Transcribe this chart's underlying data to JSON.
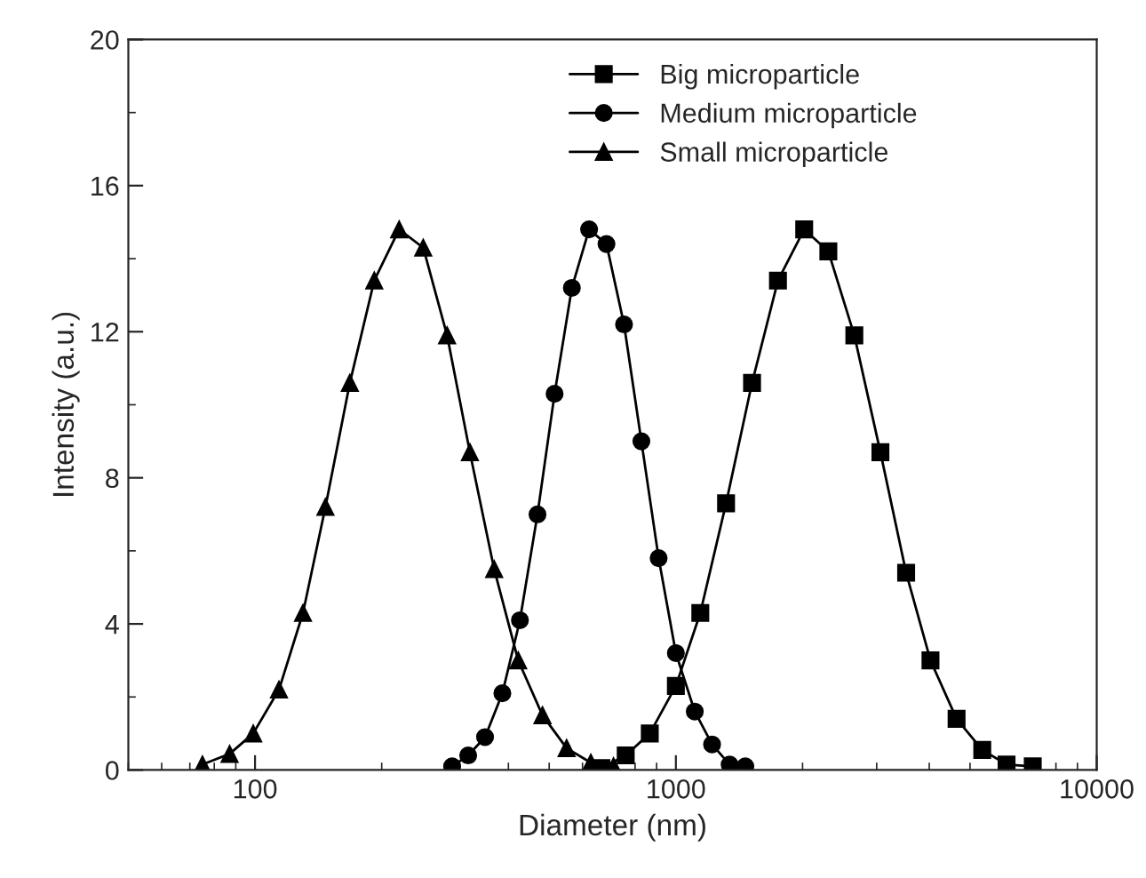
{
  "chart_data": {
    "type": "line",
    "xlabel": "Diameter (nm)",
    "ylabel": "Intensity (a.u.)",
    "log": "x",
    "xlim": [
      50,
      10000
    ],
    "xticks": [
      100,
      1000,
      10000
    ],
    "ylim": [
      0,
      20
    ],
    "yticks": [
      0,
      4,
      8,
      12,
      16,
      20
    ],
    "grid": false,
    "legend": "top right",
    "line_style": "solid",
    "series": [
      {
        "name": "Big microparticle",
        "color": "#000000",
        "marker": "square",
        "x": [
          665,
          760,
          867,
          1000,
          1143,
          1316,
          1517,
          1748,
          2018,
          2303,
          2655,
          3062,
          3525,
          4027,
          4645,
          5346,
          6106,
          7047
        ],
        "values": [
          0.05,
          0.4,
          1.0,
          2.3,
          4.3,
          7.3,
          10.6,
          13.4,
          14.8,
          14.2,
          11.9,
          8.7,
          5.4,
          3.0,
          1.4,
          0.55,
          0.15,
          0.1
        ]
      },
      {
        "name": "Medium microparticle",
        "color": "#000000",
        "marker": "circle",
        "x": [
          294,
          321,
          352,
          387,
          426,
          469,
          515,
          566,
          622,
          684,
          753,
          828,
          910,
          1000,
          1109,
          1219,
          1342,
          1462
        ],
        "values": [
          0.1,
          0.4,
          0.9,
          2.1,
          4.1,
          7.0,
          10.3,
          13.2,
          14.8,
          14.4,
          12.2,
          9.0,
          5.8,
          3.2,
          1.6,
          0.7,
          0.15,
          0.1
        ]
      },
      {
        "name": "Small microparticle",
        "color": "#000000",
        "marker": "triangle",
        "x": [
          75,
          87,
          99,
          114,
          130,
          147,
          168,
          192,
          220,
          251,
          286,
          324,
          370,
          422,
          482,
          550,
          628,
          711
        ],
        "values": [
          0.15,
          0.44,
          1.0,
          2.2,
          4.3,
          7.2,
          10.6,
          13.4,
          14.8,
          14.3,
          11.9,
          8.7,
          5.5,
          3.0,
          1.5,
          0.6,
          0.2,
          0.1
        ]
      }
    ]
  }
}
